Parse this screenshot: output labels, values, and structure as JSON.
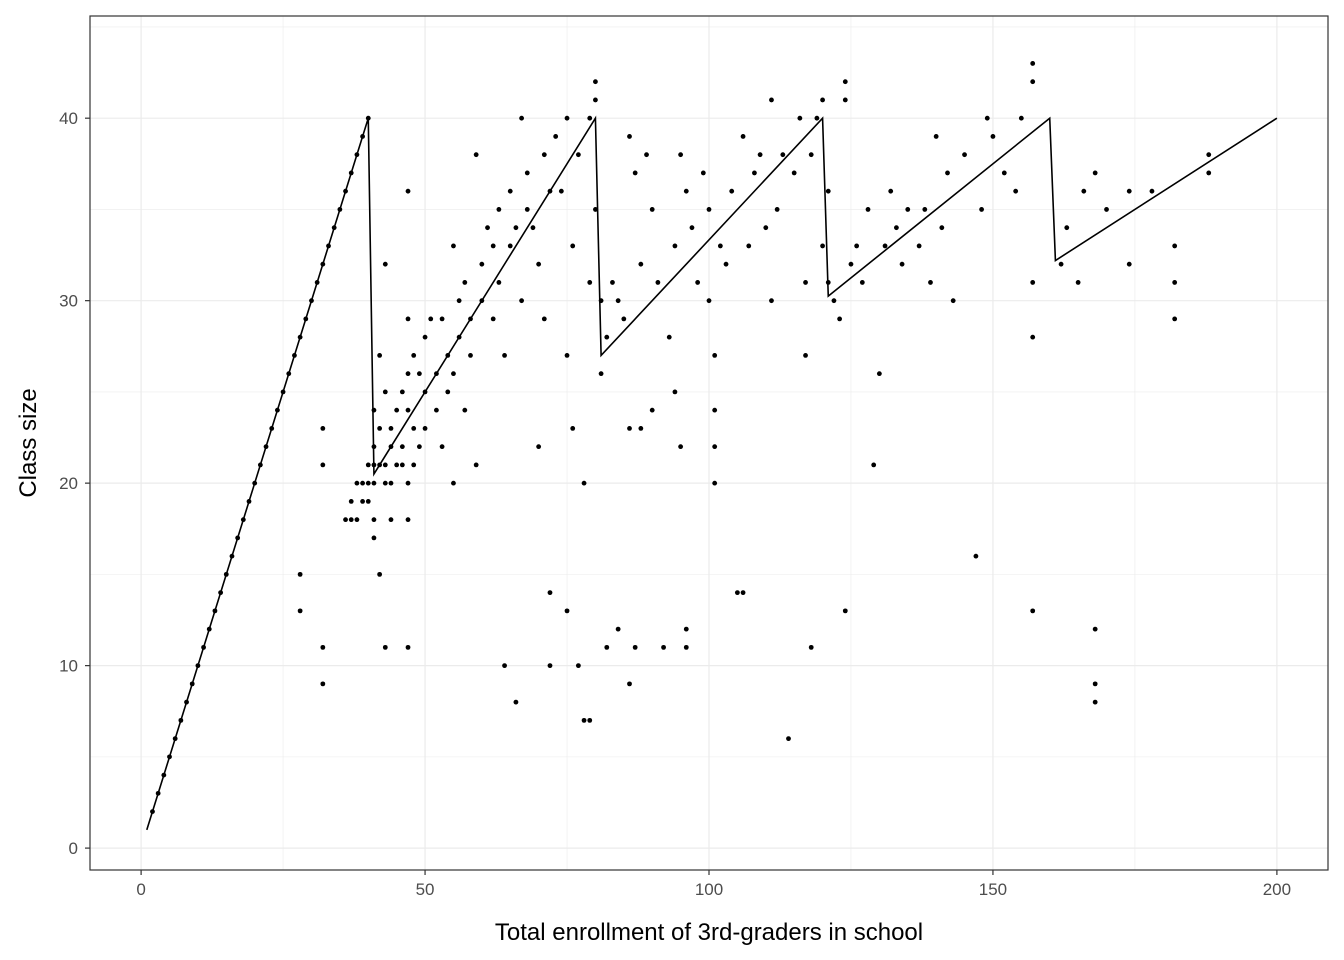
{
  "chart_data": {
    "type": "scatter",
    "title": "",
    "xlabel": "Total enrollment of 3rd-graders in school",
    "ylabel": "Class size",
    "xlim": [
      -9,
      209
    ],
    "ylim": [
      -1.2,
      45.6
    ],
    "x_ticks": [
      0,
      50,
      100,
      150,
      200
    ],
    "x_tick_labels": [
      "0",
      "50",
      "100",
      "150",
      "200"
    ],
    "y_ticks": [
      0,
      10,
      20,
      30,
      40
    ],
    "y_tick_labels": [
      "0",
      "10",
      "20",
      "30",
      "40"
    ],
    "grid": true,
    "legend": "none",
    "colors": {
      "points": "#000000",
      "line": "#000000",
      "grid": "#ebebeb",
      "border": "#333333",
      "background": "#ffffff"
    },
    "line": {
      "x": [
        1,
        40,
        41,
        80,
        81,
        120,
        121,
        160,
        161,
        200
      ],
      "y": [
        1,
        40,
        20.5,
        40,
        27,
        40,
        30.25,
        40,
        32.2,
        40
      ]
    },
    "points": [
      [
        2,
        2
      ],
      [
        3,
        3
      ],
      [
        4,
        4
      ],
      [
        5,
        5
      ],
      [
        6,
        6
      ],
      [
        7,
        7
      ],
      [
        8,
        8
      ],
      [
        9,
        9
      ],
      [
        10,
        10
      ],
      [
        11,
        11
      ],
      [
        12,
        12
      ],
      [
        13,
        13
      ],
      [
        14,
        14
      ],
      [
        15,
        15
      ],
      [
        16,
        16
      ],
      [
        17,
        17
      ],
      [
        18,
        18
      ],
      [
        19,
        19
      ],
      [
        20,
        20
      ],
      [
        21,
        21
      ],
      [
        22,
        22
      ],
      [
        23,
        23
      ],
      [
        24,
        24
      ],
      [
        25,
        25
      ],
      [
        26,
        26
      ],
      [
        27,
        27
      ],
      [
        28,
        28
      ],
      [
        29,
        29
      ],
      [
        30,
        30
      ],
      [
        31,
        31
      ],
      [
        32,
        32
      ],
      [
        33,
        33
      ],
      [
        34,
        34
      ],
      [
        35,
        35
      ],
      [
        36,
        36
      ],
      [
        37,
        37
      ],
      [
        38,
        38
      ],
      [
        39,
        39
      ],
      [
        40,
        40
      ],
      [
        28,
        15
      ],
      [
        28,
        13
      ],
      [
        32,
        23
      ],
      [
        32,
        21
      ],
      [
        32,
        11
      ],
      [
        32,
        9
      ],
      [
        36,
        18
      ],
      [
        37,
        18
      ],
      [
        38,
        18
      ],
      [
        37,
        19
      ],
      [
        38,
        20
      ],
      [
        39,
        20
      ],
      [
        39,
        19
      ],
      [
        40,
        19
      ],
      [
        40,
        20
      ],
      [
        41,
        20
      ],
      [
        40,
        21
      ],
      [
        41,
        21
      ],
      [
        41,
        22
      ],
      [
        41,
        24
      ],
      [
        41,
        18
      ],
      [
        41,
        17
      ],
      [
        42,
        27
      ],
      [
        42,
        23
      ],
      [
        42,
        21
      ],
      [
        42,
        15
      ],
      [
        43,
        32
      ],
      [
        43,
        11
      ],
      [
        43,
        25
      ],
      [
        43,
        21
      ],
      [
        44,
        22
      ],
      [
        44,
        23
      ],
      [
        44,
        20
      ],
      [
        43,
        20
      ],
      [
        44,
        18
      ],
      [
        45,
        21
      ],
      [
        45,
        24
      ],
      [
        46,
        22
      ],
      [
        46,
        25
      ],
      [
        46,
        21
      ],
      [
        47,
        36
      ],
      [
        47,
        29
      ],
      [
        47,
        26
      ],
      [
        47,
        24
      ],
      [
        47,
        20
      ],
      [
        47,
        11
      ],
      [
        47,
        18
      ],
      [
        48,
        27
      ],
      [
        48,
        23
      ],
      [
        48,
        21
      ],
      [
        49,
        26
      ],
      [
        49,
        22
      ],
      [
        50,
        28
      ],
      [
        50,
        25
      ],
      [
        50,
        23
      ],
      [
        51,
        29
      ],
      [
        52,
        26
      ],
      [
        52,
        24
      ],
      [
        53,
        29
      ],
      [
        53,
        22
      ],
      [
        54,
        27
      ],
      [
        54,
        25
      ],
      [
        55,
        20
      ],
      [
        55,
        26
      ],
      [
        55,
        33
      ],
      [
        56,
        28
      ],
      [
        56,
        30
      ],
      [
        57,
        31
      ],
      [
        57,
        24
      ],
      [
        58,
        29
      ],
      [
        58,
        27
      ],
      [
        59,
        38
      ],
      [
        59,
        21
      ],
      [
        60,
        32
      ],
      [
        60,
        30
      ],
      [
        61,
        34
      ],
      [
        62,
        33
      ],
      [
        62,
        29
      ],
      [
        63,
        35
      ],
      [
        63,
        31
      ],
      [
        64,
        10
      ],
      [
        64,
        27
      ],
      [
        65,
        36
      ],
      [
        65,
        33
      ],
      [
        66,
        8
      ],
      [
        66,
        34
      ],
      [
        67,
        40
      ],
      [
        67,
        30
      ],
      [
        68,
        37
      ],
      [
        68,
        35
      ],
      [
        69,
        34
      ],
      [
        70,
        32
      ],
      [
        70,
        22
      ],
      [
        71,
        38
      ],
      [
        71,
        29
      ],
      [
        72,
        36
      ],
      [
        72,
        14
      ],
      [
        72,
        10
      ],
      [
        73,
        39
      ],
      [
        74,
        36
      ],
      [
        75,
        40
      ],
      [
        75,
        27
      ],
      [
        75,
        13
      ],
      [
        76,
        33
      ],
      [
        76,
        23
      ],
      [
        77,
        38
      ],
      [
        77,
        10
      ],
      [
        78,
        20
      ],
      [
        78,
        7
      ],
      [
        79,
        40
      ],
      [
        79,
        31
      ],
      [
        79,
        7
      ],
      [
        80,
        42
      ],
      [
        80,
        41
      ],
      [
        80,
        35
      ],
      [
        81,
        30
      ],
      [
        81,
        26
      ],
      [
        82,
        28
      ],
      [
        82,
        11
      ],
      [
        83,
        31
      ],
      [
        84,
        30
      ],
      [
        84,
        12
      ],
      [
        85,
        29
      ],
      [
        86,
        39
      ],
      [
        86,
        23
      ],
      [
        86,
        9
      ],
      [
        87,
        37
      ],
      [
        87,
        11
      ],
      [
        88,
        32
      ],
      [
        88,
        23
      ],
      [
        89,
        38
      ],
      [
        90,
        35
      ],
      [
        90,
        24
      ],
      [
        91,
        31
      ],
      [
        92,
        11
      ],
      [
        93,
        28
      ],
      [
        94,
        33
      ],
      [
        94,
        25
      ],
      [
        95,
        22
      ],
      [
        95,
        38
      ],
      [
        96,
        36
      ],
      [
        96,
        12
      ],
      [
        96,
        11
      ],
      [
        97,
        34
      ],
      [
        98,
        31
      ],
      [
        99,
        37
      ],
      [
        100,
        35
      ],
      [
        100,
        30
      ],
      [
        101,
        27
      ],
      [
        101,
        24
      ],
      [
        101,
        22
      ],
      [
        101,
        20
      ],
      [
        102,
        33
      ],
      [
        103,
        32
      ],
      [
        104,
        36
      ],
      [
        105,
        14
      ],
      [
        106,
        14
      ],
      [
        106,
        39
      ],
      [
        107,
        33
      ],
      [
        108,
        37
      ],
      [
        109,
        38
      ],
      [
        110,
        34
      ],
      [
        111,
        41
      ],
      [
        111,
        30
      ],
      [
        112,
        35
      ],
      [
        113,
        38
      ],
      [
        114,
        6
      ],
      [
        115,
        37
      ],
      [
        116,
        40
      ],
      [
        117,
        31
      ],
      [
        117,
        27
      ],
      [
        118,
        38
      ],
      [
        118,
        11
      ],
      [
        119,
        40
      ],
      [
        120,
        41
      ],
      [
        120,
        33
      ],
      [
        121,
        36
      ],
      [
        121,
        31
      ],
      [
        122,
        30
      ],
      [
        123,
        29
      ],
      [
        124,
        42
      ],
      [
        124,
        41
      ],
      [
        124,
        13
      ],
      [
        125,
        32
      ],
      [
        126,
        33
      ],
      [
        127,
        31
      ],
      [
        128,
        35
      ],
      [
        129,
        21
      ],
      [
        130,
        26
      ],
      [
        131,
        33
      ],
      [
        132,
        36
      ],
      [
        133,
        34
      ],
      [
        134,
        32
      ],
      [
        135,
        35
      ],
      [
        137,
        33
      ],
      [
        138,
        35
      ],
      [
        139,
        31
      ],
      [
        140,
        39
      ],
      [
        141,
        34
      ],
      [
        142,
        37
      ],
      [
        143,
        30
      ],
      [
        145,
        38
      ],
      [
        147,
        16
      ],
      [
        148,
        35
      ],
      [
        149,
        40
      ],
      [
        150,
        39
      ],
      [
        152,
        37
      ],
      [
        154,
        36
      ],
      [
        155,
        40
      ],
      [
        157,
        43
      ],
      [
        157,
        42
      ],
      [
        157,
        31
      ],
      [
        157,
        28
      ],
      [
        157,
        13
      ],
      [
        162,
        32
      ],
      [
        163,
        34
      ],
      [
        165,
        31
      ],
      [
        166,
        36
      ],
      [
        168,
        37
      ],
      [
        168,
        12
      ],
      [
        168,
        9
      ],
      [
        168,
        8
      ],
      [
        170,
        35
      ],
      [
        174,
        36
      ],
      [
        174,
        32
      ],
      [
        178,
        36
      ],
      [
        182,
        33
      ],
      [
        182,
        31
      ],
      [
        182,
        29
      ],
      [
        188,
        38
      ],
      [
        188,
        37
      ]
    ]
  }
}
